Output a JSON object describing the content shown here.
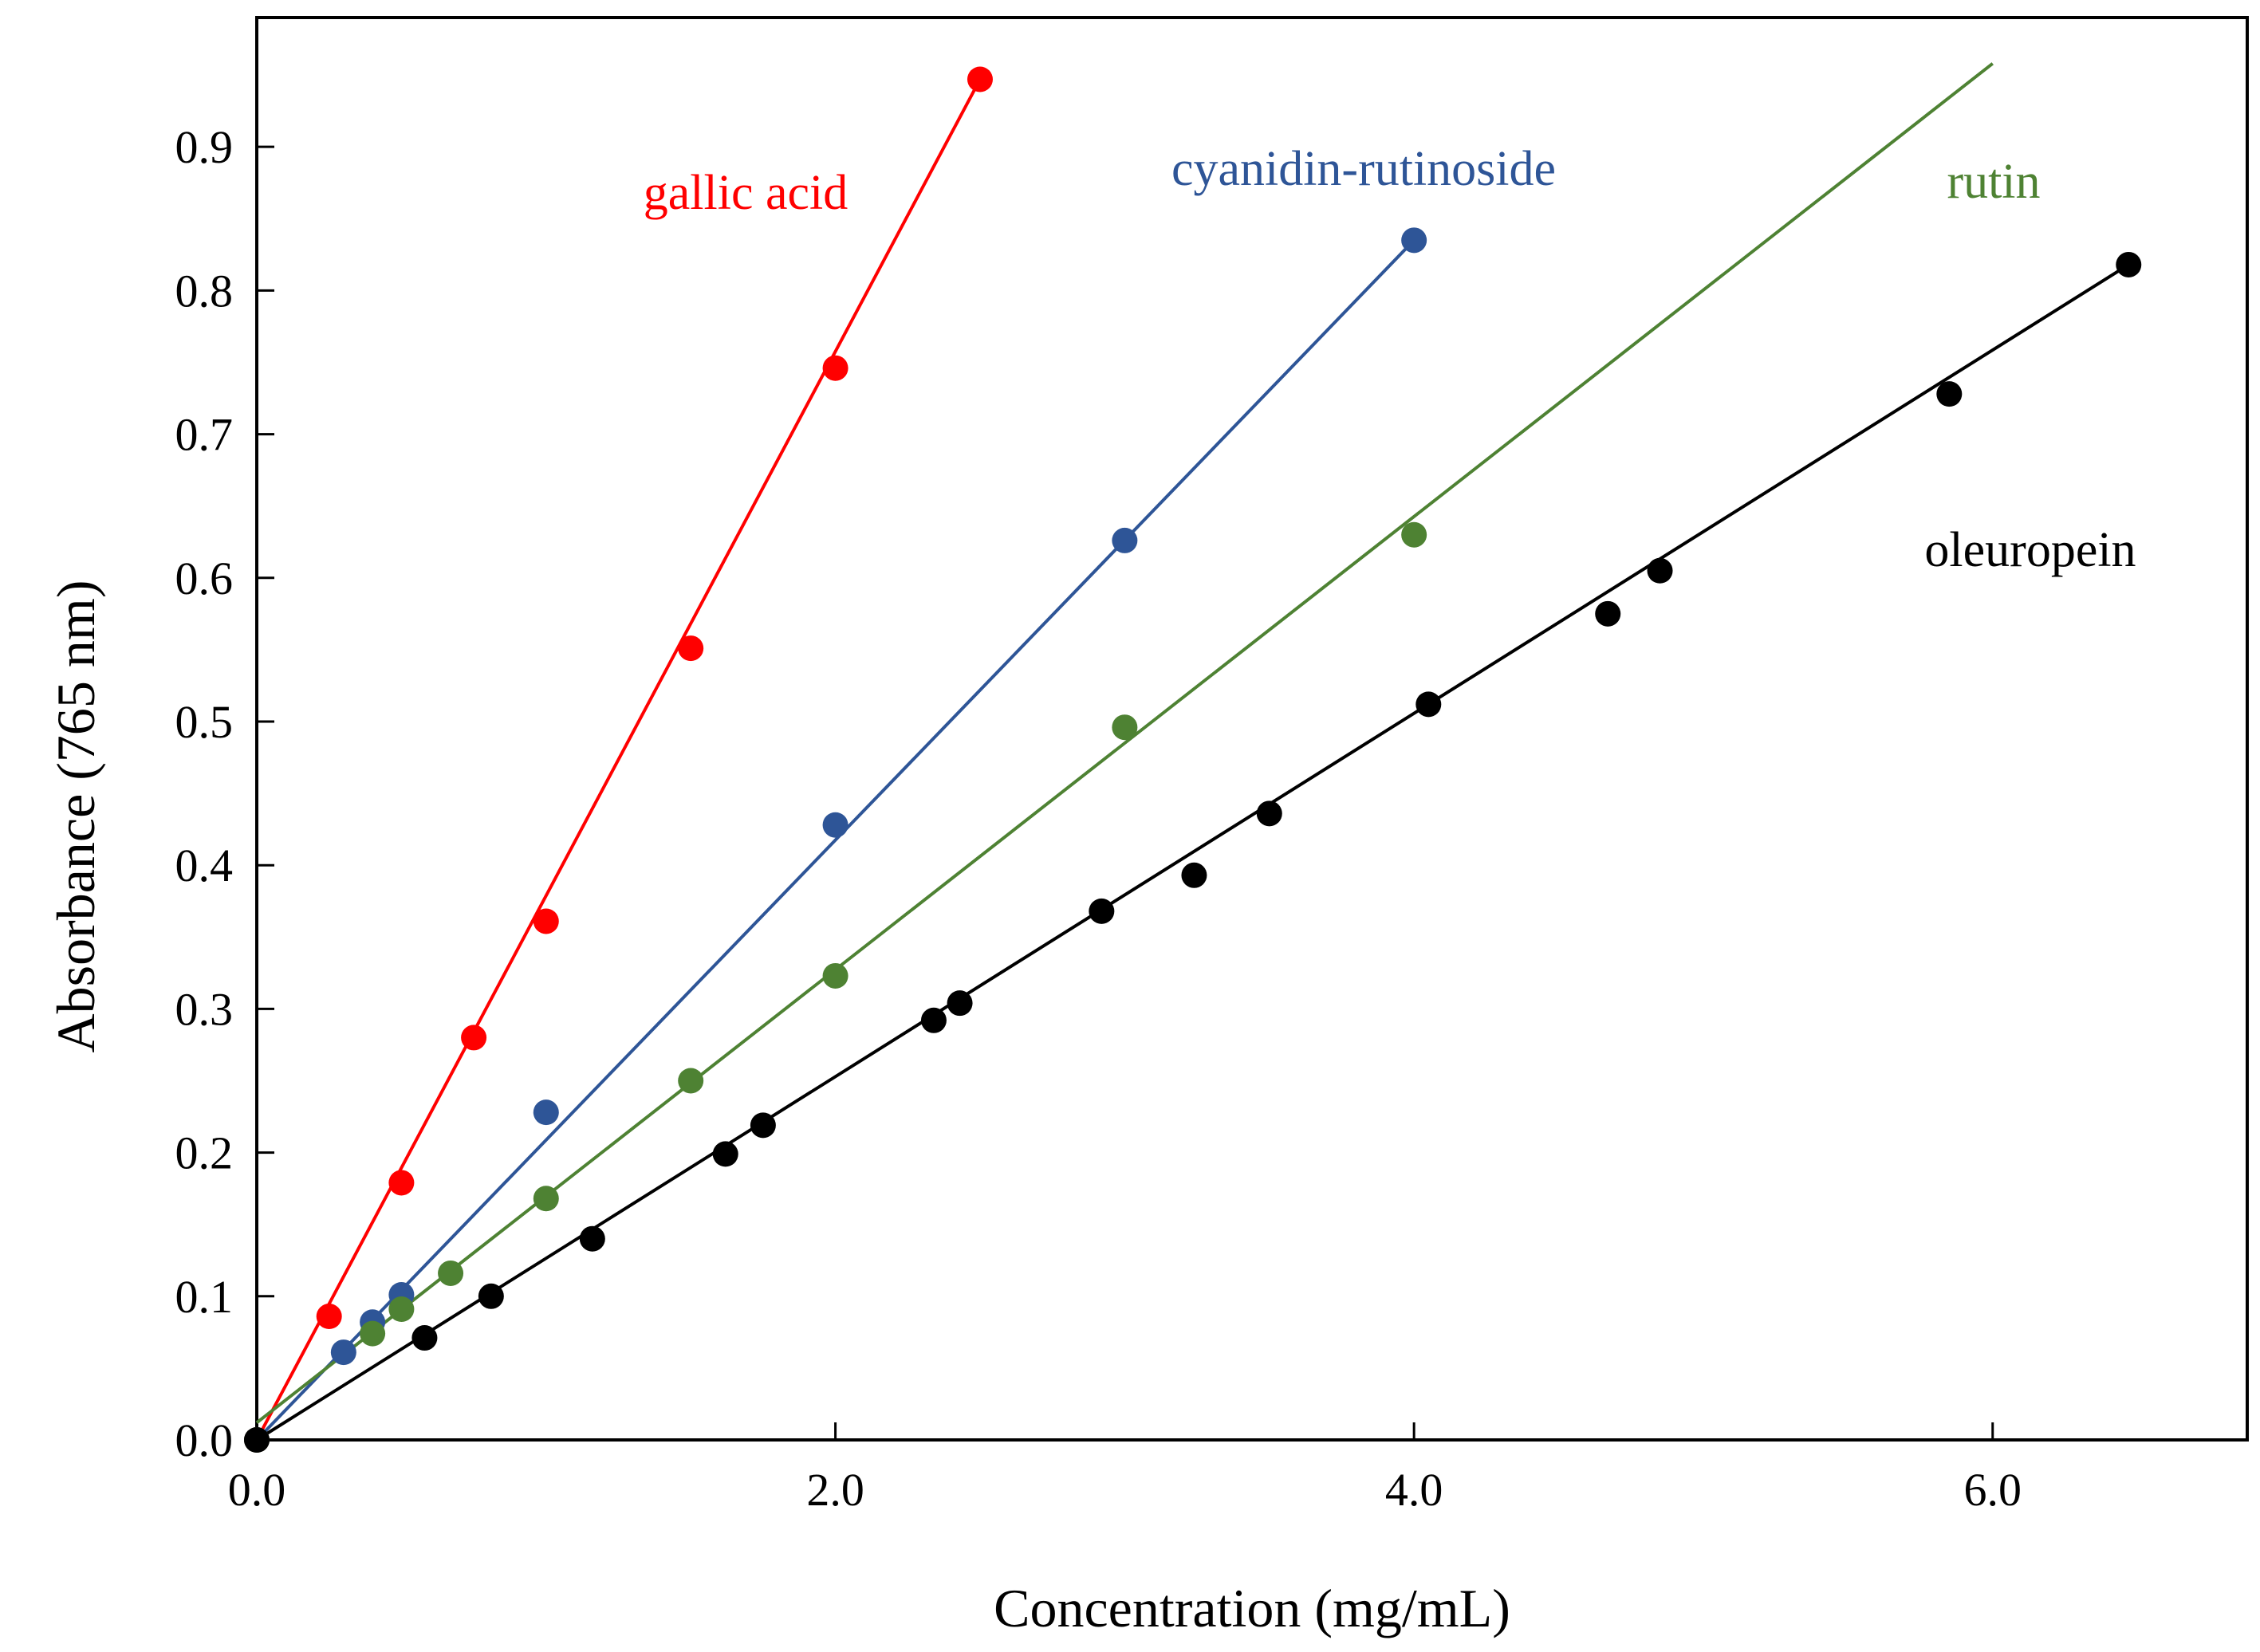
{
  "chart_data": {
    "type": "scatter",
    "title": "",
    "xlabel": "Concentration (mg/mL)",
    "ylabel": "Absorbance (765 nm)",
    "xlim": [
      0,
      6.88
    ],
    "ylim": [
      0,
      0.99
    ],
    "x_ticks": [
      0,
      2,
      4,
      6
    ],
    "x_tick_labels": [
      "0.0",
      "2.0",
      "4.0",
      "6.0"
    ],
    "y_ticks": [
      0,
      0.1,
      0.2,
      0.3,
      0.4,
      0.5,
      0.6,
      0.7,
      0.8,
      0.9
    ],
    "y_tick_labels": [
      "0.0",
      "0.1",
      "0.2",
      "0.3",
      "0.4",
      "0.5",
      "0.6",
      "0.7",
      "0.8",
      "0.9"
    ],
    "grid": false,
    "legend": "inline labels",
    "series": [
      {
        "name": "gallic acid",
        "color": "#ff0000",
        "points": [
          [
            0,
            0
          ],
          [
            0.25,
            0.086
          ],
          [
            0.5,
            0.179
          ],
          [
            0.75,
            0.28
          ],
          [
            1.0,
            0.361
          ],
          [
            1.5,
            0.551
          ],
          [
            2.0,
            0.746
          ],
          [
            2.5,
            0.947
          ]
        ],
        "fit": [
          [
            0,
            0
          ],
          [
            2.5,
            0.947
          ]
        ]
      },
      {
        "name": "cyanidin-rutinoside",
        "color": "#2e5597",
        "points": [
          [
            0,
            0
          ],
          [
            0.3,
            0.061
          ],
          [
            0.4,
            0.082
          ],
          [
            0.5,
            0.101
          ],
          [
            1.0,
            0.228
          ],
          [
            2.0,
            0.428
          ],
          [
            3.0,
            0.626
          ],
          [
            4.0,
            0.835
          ]
        ],
        "fit": [
          [
            0,
            0
          ],
          [
            4.0,
            0.835
          ]
        ]
      },
      {
        "name": "rutin",
        "color": "#4e8233",
        "points": [
          [
            0,
            0
          ],
          [
            0.4,
            0.074
          ],
          [
            0.5,
            0.091
          ],
          [
            0.67,
            0.116
          ],
          [
            1.0,
            0.168
          ],
          [
            1.5,
            0.25
          ],
          [
            2.0,
            0.323
          ],
          [
            3.0,
            0.496
          ],
          [
            4.0,
            0.63
          ]
        ],
        "fit": [
          [
            0,
            0.012
          ],
          [
            6.0,
            0.958
          ]
        ]
      },
      {
        "name": "oleuropein",
        "color": "#000000",
        "points": [
          [
            0,
            0
          ],
          [
            0.58,
            0.071
          ],
          [
            0.81,
            0.1
          ],
          [
            1.16,
            0.14
          ],
          [
            1.62,
            0.199
          ],
          [
            1.75,
            0.219
          ],
          [
            2.34,
            0.292
          ],
          [
            2.43,
            0.304
          ],
          [
            2.92,
            0.368
          ],
          [
            3.24,
            0.393
          ],
          [
            3.5,
            0.436
          ],
          [
            4.05,
            0.512
          ],
          [
            4.67,
            0.575
          ],
          [
            4.85,
            0.605
          ],
          [
            5.85,
            0.728
          ],
          [
            6.47,
            0.818
          ]
        ],
        "fit": [
          [
            0,
            0
          ],
          [
            6.47,
            0.818
          ]
        ]
      }
    ],
    "annotations": [
      "gallic acid",
      "cyanidin-rutinoside",
      "rutin",
      "oleuropein"
    ]
  }
}
